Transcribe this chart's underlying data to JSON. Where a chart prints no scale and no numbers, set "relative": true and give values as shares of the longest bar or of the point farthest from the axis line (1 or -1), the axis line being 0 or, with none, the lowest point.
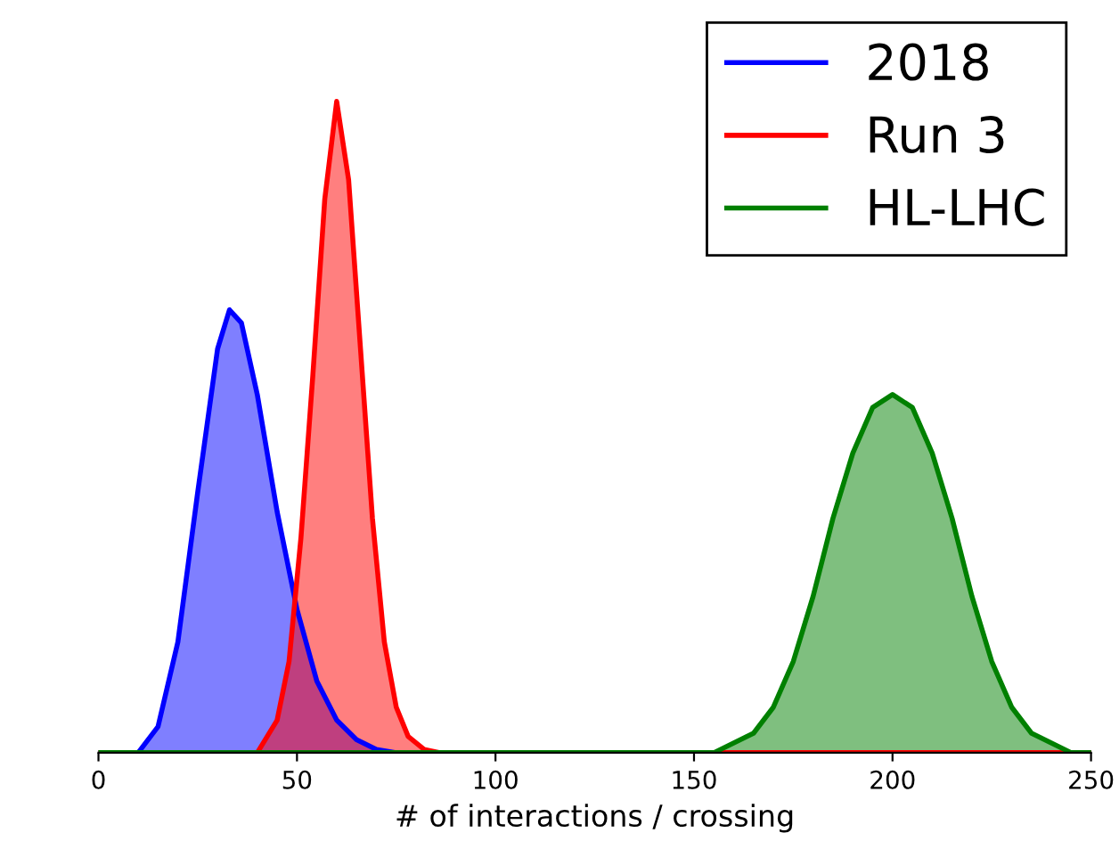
{
  "chart_data": {
    "type": "area",
    "relative": true,
    "xlabel": "# of interactions / crossing",
    "xlim": [
      0,
      250
    ],
    "xticks": [
      0,
      50,
      100,
      150,
      200,
      250
    ],
    "legend": "top right",
    "grid": false,
    "series": [
      {
        "name": "2018",
        "color": "#0000ff",
        "x": [
          0,
          10,
          15,
          20,
          25,
          30,
          33,
          36,
          40,
          45,
          50,
          55,
          60,
          65,
          70,
          75,
          250
        ],
        "values": [
          0,
          0,
          0.04,
          0.17,
          0.4,
          0.62,
          0.68,
          0.66,
          0.55,
          0.37,
          0.22,
          0.11,
          0.05,
          0.02,
          0.005,
          0,
          0
        ]
      },
      {
        "name": "Run 3",
        "color": "#ff0000",
        "x": [
          0,
          40,
          45,
          48,
          51,
          54,
          57,
          60,
          63,
          66,
          69,
          72,
          75,
          78,
          82,
          86,
          250
        ],
        "values": [
          0,
          0,
          0.05,
          0.14,
          0.33,
          0.58,
          0.85,
          1,
          0.88,
          0.62,
          0.36,
          0.17,
          0.07,
          0.025,
          0.005,
          0,
          0
        ]
      },
      {
        "name": "HL-LHC",
        "color": "#008000",
        "x": [
          0,
          155,
          165,
          170,
          175,
          180,
          185,
          190,
          195,
          200,
          205,
          210,
          215,
          220,
          225,
          230,
          235,
          245,
          250
        ],
        "values": [
          0,
          0,
          0.03,
          0.07,
          0.14,
          0.24,
          0.36,
          0.46,
          0.53,
          0.55,
          0.53,
          0.46,
          0.36,
          0.24,
          0.14,
          0.07,
          0.03,
          0,
          0
        ]
      }
    ]
  }
}
